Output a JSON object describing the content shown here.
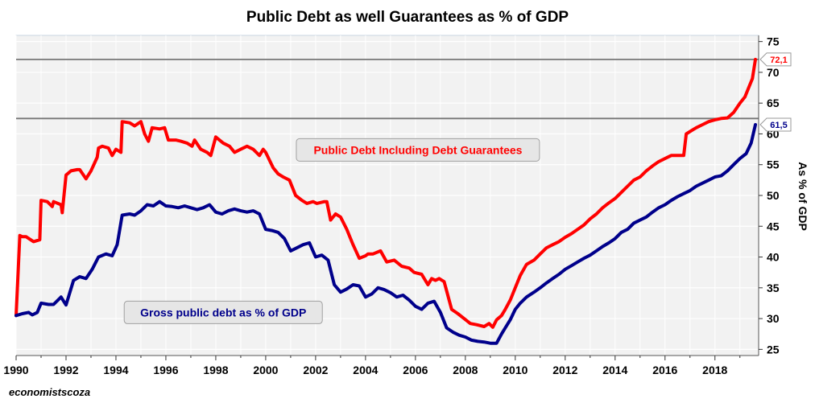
{
  "chart_data": {
    "type": "line",
    "title": "Public Debt as well Guarantees as % of GDP",
    "xlabel": "",
    "ylabel": "As % of GDP",
    "credit": "economistscoza",
    "xlim": [
      1990,
      2019.75
    ],
    "ylim": [
      24,
      76
    ],
    "xticks": [
      1990,
      1992,
      1994,
      1996,
      1998,
      2000,
      2002,
      2004,
      2006,
      2008,
      2010,
      2012,
      2014,
      2016,
      2018
    ],
    "yticks": [
      25,
      30,
      35,
      40,
      45,
      50,
      55,
      60,
      65,
      70,
      75
    ],
    "grid": true,
    "reference_lines": [
      72.1,
      62.5
    ],
    "series": [
      {
        "name": "Public Debt Including Debt Guarantees",
        "color": "#ff0000",
        "label_text": "Public Debt Including Debt Guarantees",
        "end_label": "72,1",
        "x": [
          1990.0,
          1990.15,
          1990.25,
          1990.4,
          1990.7,
          1990.95,
          1991.0,
          1991.25,
          1991.45,
          1991.5,
          1991.8,
          1991.85,
          1992.0,
          1992.2,
          1992.45,
          1992.55,
          1992.8,
          1993.0,
          1993.25,
          1993.3,
          1993.45,
          1993.7,
          1993.85,
          1994.0,
          1994.2,
          1994.25,
          1994.55,
          1994.75,
          1995.0,
          1995.15,
          1995.3,
          1995.45,
          1995.75,
          1995.95,
          1996.1,
          1996.4,
          1996.6,
          1996.85,
          1997.05,
          1997.15,
          1997.4,
          1997.65,
          1997.8,
          1998.0,
          1998.3,
          1998.55,
          1998.75,
          1999.0,
          1999.25,
          1999.5,
          1999.75,
          1999.9,
          2000.0,
          2000.3,
          2000.5,
          2000.7,
          2000.95,
          2001.2,
          2001.45,
          2001.65,
          2001.9,
          2002.05,
          2002.35,
          2002.45,
          2002.6,
          2002.8,
          2003.0,
          2003.25,
          2003.5,
          2003.75,
          2004.0,
          2004.1,
          2004.3,
          2004.6,
          2004.85,
          2005.15,
          2005.45,
          2005.75,
          2005.95,
          2006.25,
          2006.5,
          2006.65,
          2006.8,
          2006.95,
          2007.15,
          2007.45,
          2007.7,
          2007.95,
          2008.2,
          2008.45,
          2008.75,
          2008.95,
          2009.1,
          2009.25,
          2009.45,
          2009.6,
          2009.8,
          2010.0,
          2010.2,
          2010.45,
          2010.75,
          2011.0,
          2011.25,
          2011.5,
          2011.75,
          2012.0,
          2012.25,
          2012.5,
          2012.75,
          2013.0,
          2013.25,
          2013.5,
          2013.75,
          2014.0,
          2014.25,
          2014.5,
          2014.75,
          2015.0,
          2015.25,
          2015.5,
          2015.75,
          2016.0,
          2016.25,
          2016.5,
          2016.75,
          2016.85,
          2017.05,
          2017.25,
          2017.5,
          2017.75,
          2018.0,
          2018.25,
          2018.5,
          2018.75,
          2019.0,
          2019.2,
          2019.35,
          2019.5,
          2019.62
        ],
        "values": [
          30.5,
          43.5,
          43.3,
          43.3,
          42.5,
          42.8,
          49.2,
          49.0,
          48.2,
          49.0,
          48.5,
          47.2,
          53.3,
          54.0,
          54.2,
          54.2,
          52.7,
          54.0,
          56.2,
          57.7,
          58.0,
          57.7,
          56.5,
          57.5,
          57.0,
          62.0,
          61.8,
          61.3,
          62.0,
          60.0,
          58.8,
          61.0,
          60.8,
          61.0,
          59.0,
          59.0,
          58.8,
          58.5,
          58.0,
          59.0,
          57.5,
          57.0,
          56.5,
          59.5,
          58.5,
          58.0,
          57.0,
          57.5,
          58.0,
          57.5,
          56.5,
          57.5,
          57.0,
          54.5,
          53.5,
          53.0,
          52.5,
          50.0,
          49.2,
          48.7,
          49.0,
          48.7,
          49.0,
          49.0,
          46.0,
          47.0,
          46.5,
          44.5,
          42.0,
          39.8,
          40.2,
          40.5,
          40.5,
          41.0,
          39.2,
          39.5,
          38.5,
          38.2,
          37.5,
          37.2,
          35.5,
          36.5,
          36.2,
          36.5,
          36.0,
          31.5,
          30.8,
          30.0,
          29.2,
          29.0,
          28.7,
          29.2,
          28.6,
          29.8,
          30.5,
          31.5,
          33.0,
          35.0,
          37.0,
          38.8,
          39.5,
          40.5,
          41.5,
          42.0,
          42.5,
          43.2,
          43.8,
          44.5,
          45.2,
          46.2,
          47.0,
          48.0,
          48.8,
          49.5,
          50.5,
          51.5,
          52.5,
          53.0,
          54.0,
          54.8,
          55.5,
          56.0,
          56.5,
          56.5,
          56.5,
          60.0,
          60.5,
          61.0,
          61.5,
          62.0,
          62.3,
          62.5,
          62.6,
          63.5,
          65.0,
          66.0,
          67.5,
          69.0,
          72.1
        ]
      },
      {
        "name": "Gross public debt as % of GDP",
        "color": "#00008b",
        "label_text": "Gross public debt as % of GDP",
        "end_label": "61,5",
        "x": [
          1990.0,
          1990.25,
          1990.5,
          1990.65,
          1990.85,
          1991.0,
          1991.3,
          1991.5,
          1991.8,
          1992.0,
          1992.3,
          1992.55,
          1992.8,
          1993.05,
          1993.3,
          1993.6,
          1993.85,
          1994.05,
          1994.25,
          1994.55,
          1994.75,
          1995.0,
          1995.25,
          1995.5,
          1995.75,
          1996.0,
          1996.25,
          1996.5,
          1996.75,
          1997.0,
          1997.25,
          1997.5,
          1997.75,
          1998.0,
          1998.25,
          1998.5,
          1998.75,
          1999.0,
          1999.25,
          1999.5,
          1999.75,
          2000.0,
          2000.25,
          2000.5,
          2000.75,
          2001.0,
          2001.25,
          2001.5,
          2001.75,
          2002.0,
          2002.25,
          2002.5,
          2002.75,
          2003.0,
          2003.25,
          2003.5,
          2003.75,
          2004.0,
          2004.25,
          2004.5,
          2004.75,
          2005.0,
          2005.25,
          2005.5,
          2005.75,
          2006.0,
          2006.25,
          2006.5,
          2006.75,
          2007.0,
          2007.25,
          2007.5,
          2007.75,
          2008.0,
          2008.25,
          2008.5,
          2008.75,
          2009.0,
          2009.25,
          2009.45,
          2009.6,
          2009.8,
          2010.0,
          2010.2,
          2010.45,
          2010.75,
          2011.0,
          2011.25,
          2011.5,
          2011.75,
          2012.0,
          2012.25,
          2012.5,
          2012.75,
          2013.0,
          2013.25,
          2013.5,
          2013.75,
          2014.0,
          2014.25,
          2014.5,
          2014.75,
          2015.0,
          2015.25,
          2015.5,
          2015.75,
          2016.0,
          2016.25,
          2016.5,
          2016.75,
          2017.0,
          2017.25,
          2017.5,
          2017.75,
          2018.0,
          2018.25,
          2018.5,
          2018.75,
          2019.0,
          2019.25,
          2019.45,
          2019.62
        ],
        "values": [
          30.5,
          30.8,
          31.0,
          30.6,
          31.0,
          32.5,
          32.3,
          32.3,
          33.5,
          32.2,
          36.2,
          36.8,
          36.5,
          38.0,
          40.0,
          40.5,
          40.2,
          42.0,
          46.8,
          47.0,
          46.8,
          47.5,
          48.5,
          48.3,
          49.0,
          48.3,
          48.2,
          48.0,
          48.3,
          48.0,
          47.7,
          48.0,
          48.5,
          47.3,
          47.0,
          47.5,
          47.8,
          47.5,
          47.3,
          47.5,
          47.0,
          44.5,
          44.3,
          44.0,
          43.0,
          41.0,
          41.5,
          42.0,
          42.3,
          40.0,
          40.3,
          39.5,
          35.5,
          34.3,
          34.8,
          35.5,
          35.3,
          33.5,
          34.0,
          35.0,
          34.7,
          34.2,
          33.5,
          33.8,
          33.0,
          32.0,
          31.5,
          32.5,
          32.8,
          31.0,
          28.5,
          27.8,
          27.3,
          27.0,
          26.5,
          26.3,
          26.2,
          26.0,
          26.0,
          27.5,
          28.5,
          29.8,
          31.5,
          32.5,
          33.5,
          34.3,
          35.0,
          35.8,
          36.5,
          37.2,
          38.0,
          38.6,
          39.2,
          39.8,
          40.3,
          41.0,
          41.7,
          42.3,
          43.0,
          44.0,
          44.5,
          45.5,
          46.0,
          46.5,
          47.3,
          48.0,
          48.5,
          49.2,
          49.8,
          50.3,
          50.8,
          51.5,
          52.0,
          52.5,
          53.0,
          53.2,
          54.0,
          55.0,
          56.0,
          56.8,
          58.5,
          61.5
        ]
      }
    ]
  }
}
